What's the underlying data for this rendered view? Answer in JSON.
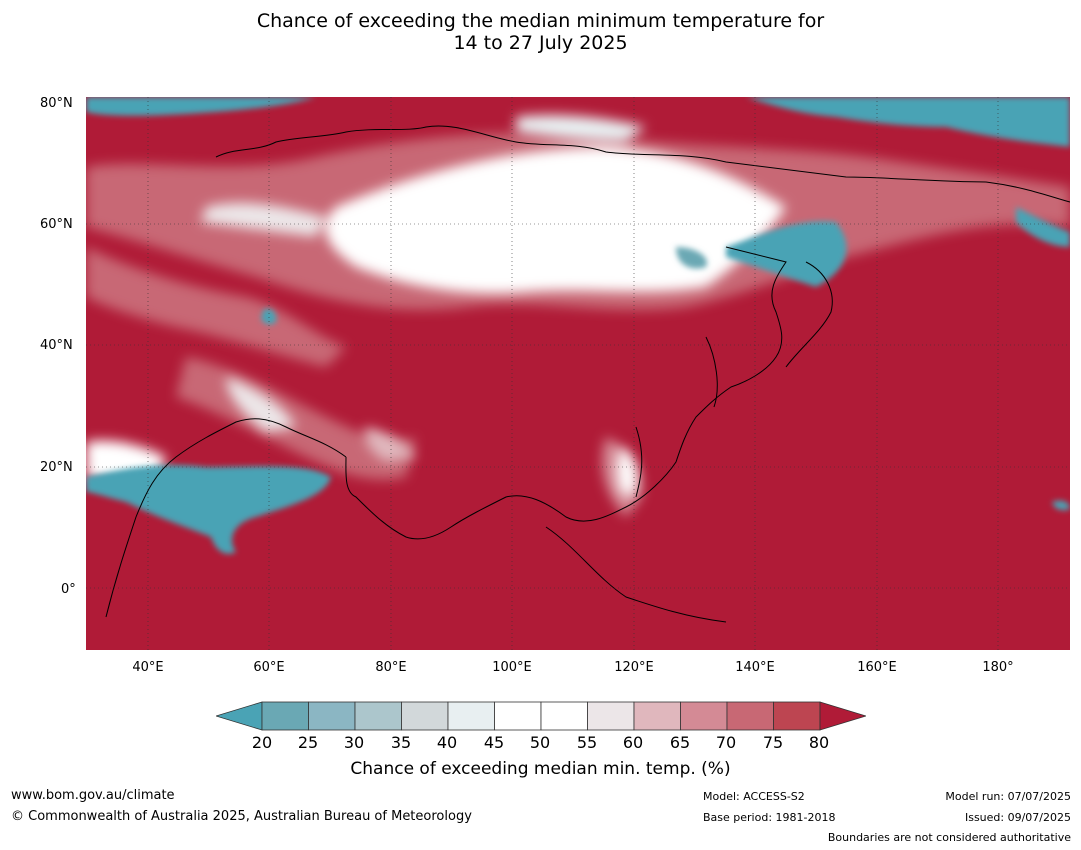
{
  "title_line1": "Chance of exceeding the median minimum temperature for",
  "title_line2": "14 to 27 July 2025",
  "lat_labels": [
    "80°N",
    "60°N",
    "40°N",
    "20°N",
    "0°"
  ],
  "lon_labels": [
    "40°E",
    "60°E",
    "80°E",
    "100°E",
    "120°E",
    "140°E",
    "160°E",
    "180°"
  ],
  "colorbar": {
    "ticks": [
      "20",
      "25",
      "30",
      "35",
      "40",
      "45",
      "50",
      "55",
      "60",
      "65",
      "70",
      "75",
      "80"
    ],
    "colors": [
      "#6aa8b4",
      "#8bb6c3",
      "#acc6cc",
      "#d2d8da",
      "#e8eff1",
      "#ffffff",
      "#ffffff",
      "#ece6e8",
      "#e0b7bd",
      "#d48a95",
      "#c86874",
      "#bd4551"
    ],
    "low_color": "#4aa3b5",
    "high_color": "#b01b37",
    "label": "Chance of exceeding median min. temp. (%)"
  },
  "footer": {
    "website": "www.bom.gov.au/climate",
    "copyright": "© Commonwealth of Australia 2025, Australian Bureau of Meteorology",
    "model": "Model: ACCESS-S2",
    "base_period": "Base period: 1981-2018",
    "model_run": "Model run: 07/07/2025",
    "issued": "Issued: 09/07/2025",
    "disclaimer": "Boundaries are not considered authoritative"
  }
}
